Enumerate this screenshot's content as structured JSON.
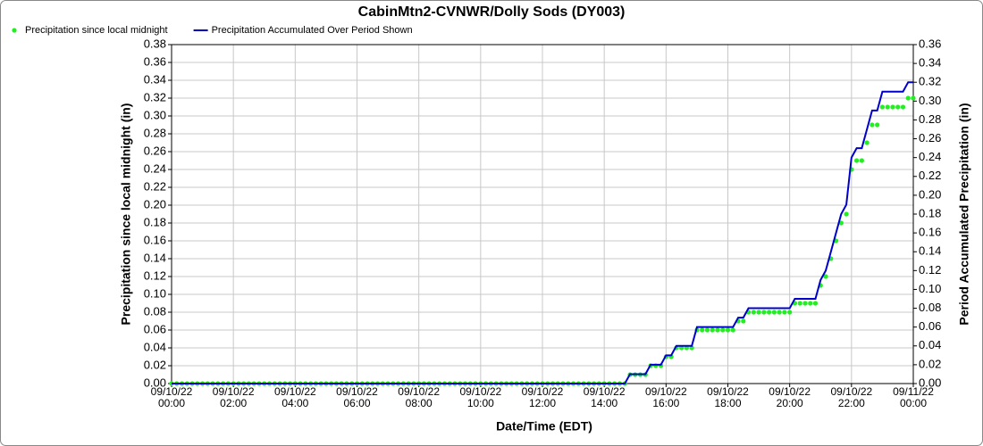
{
  "chart_data": {
    "type": "line",
    "title": "CabinMtn2-CVNWR/Dolly Sods (DY003)",
    "x_label": "Date/Time (EDT)",
    "y_label": "Precipitation since local midnight (in)",
    "y2_label": "Period Accumulated Precipitation (in)",
    "grid": true,
    "legend_position": "top-left",
    "xlim": [
      "09/10/22 00:00",
      "09/11/22 00:00"
    ],
    "xticks": [
      "09/10/22 00:00",
      "09/10/22 02:00",
      "09/10/22 04:00",
      "09/10/22 06:00",
      "09/10/22 08:00",
      "09/10/22 10:00",
      "09/10/22 12:00",
      "09/10/22 14:00",
      "09/10/22 16:00",
      "09/10/22 18:00",
      "09/10/22 20:00",
      "09/10/22 22:00",
      "09/11/22 00:00"
    ],
    "ylim": [
      0,
      0.38
    ],
    "yticks": [
      {
        "value": 0,
        "label": "0.00"
      },
      {
        "value": 0.02,
        "label": "0.02"
      },
      {
        "value": 0.04,
        "label": "0.04"
      },
      {
        "value": 0.06,
        "label": "0.06"
      },
      {
        "value": 0.08,
        "label": "0.08"
      },
      {
        "value": 0.1,
        "label": "0.10"
      },
      {
        "value": 0.12,
        "label": "0.12"
      },
      {
        "value": 0.14,
        "label": "0.14"
      },
      {
        "value": 0.16,
        "label": "0.16"
      },
      {
        "value": 0.18,
        "label": "0.18"
      },
      {
        "value": 0.2,
        "label": "0.20"
      },
      {
        "value": 0.22,
        "label": "0.22"
      },
      {
        "value": 0.24,
        "label": "0.24"
      },
      {
        "value": 0.26,
        "label": "0.26"
      },
      {
        "value": 0.28,
        "label": "0.28"
      },
      {
        "value": 0.3,
        "label": "0.30"
      },
      {
        "value": 0.32,
        "label": "0.32"
      },
      {
        "value": 0.34,
        "label": "0.34"
      },
      {
        "value": 0.36,
        "label": "0.36"
      },
      {
        "value": 0.38,
        "label": "0.38"
      }
    ],
    "y2lim": [
      0,
      0.36
    ],
    "y2ticks": [
      {
        "value": 0,
        "label": "0.00"
      },
      {
        "value": 0.02,
        "label": "0.02"
      },
      {
        "value": 0.04,
        "label": "0.04"
      },
      {
        "value": 0.06,
        "label": "0.06"
      },
      {
        "value": 0.08,
        "label": "0.08"
      },
      {
        "value": 0.1,
        "label": "0.10"
      },
      {
        "value": 0.12,
        "label": "0.12"
      },
      {
        "value": 0.14,
        "label": "0.14"
      },
      {
        "value": 0.16,
        "label": "0.16"
      },
      {
        "value": 0.18,
        "label": "0.18"
      },
      {
        "value": 0.2,
        "label": "0.20"
      },
      {
        "value": 0.22,
        "label": "0.22"
      },
      {
        "value": 0.24,
        "label": "0.24"
      },
      {
        "value": 0.26,
        "label": "0.26"
      },
      {
        "value": 0.28,
        "label": "0.28"
      },
      {
        "value": 0.3,
        "label": "0.30"
      },
      {
        "value": 0.32,
        "label": "0.32"
      },
      {
        "value": 0.34,
        "label": "0.34"
      },
      {
        "value": 0.36,
        "label": "0.36"
      }
    ],
    "x": [
      "09/10/22 00:00",
      "09/10/22 00:10",
      "09/10/22 00:20",
      "09/10/22 00:30",
      "09/10/22 00:40",
      "09/10/22 00:50",
      "09/10/22 01:00",
      "09/10/22 01:10",
      "09/10/22 01:20",
      "09/10/22 01:30",
      "09/10/22 01:40",
      "09/10/22 01:50",
      "09/10/22 02:00",
      "09/10/22 02:10",
      "09/10/22 02:20",
      "09/10/22 02:30",
      "09/10/22 02:40",
      "09/10/22 02:50",
      "09/10/22 03:00",
      "09/10/22 03:10",
      "09/10/22 03:20",
      "09/10/22 03:30",
      "09/10/22 03:40",
      "09/10/22 03:50",
      "09/10/22 04:00",
      "09/10/22 04:10",
      "09/10/22 04:20",
      "09/10/22 04:30",
      "09/10/22 04:40",
      "09/10/22 04:50",
      "09/10/22 05:00",
      "09/10/22 05:10",
      "09/10/22 05:20",
      "09/10/22 05:30",
      "09/10/22 05:40",
      "09/10/22 05:50",
      "09/10/22 06:00",
      "09/10/22 06:10",
      "09/10/22 06:20",
      "09/10/22 06:30",
      "09/10/22 06:40",
      "09/10/22 06:50",
      "09/10/22 07:00",
      "09/10/22 07:10",
      "09/10/22 07:20",
      "09/10/22 07:30",
      "09/10/22 07:40",
      "09/10/22 07:50",
      "09/10/22 08:00",
      "09/10/22 08:10",
      "09/10/22 08:20",
      "09/10/22 08:30",
      "09/10/22 08:40",
      "09/10/22 08:50",
      "09/10/22 09:00",
      "09/10/22 09:10",
      "09/10/22 09:20",
      "09/10/22 09:30",
      "09/10/22 09:40",
      "09/10/22 09:50",
      "09/10/22 10:00",
      "09/10/22 10:10",
      "09/10/22 10:20",
      "09/10/22 10:30",
      "09/10/22 10:40",
      "09/10/22 10:50",
      "09/10/22 11:00",
      "09/10/22 11:10",
      "09/10/22 11:20",
      "09/10/22 11:30",
      "09/10/22 11:40",
      "09/10/22 11:50",
      "09/10/22 12:00",
      "09/10/22 12:10",
      "09/10/22 12:20",
      "09/10/22 12:30",
      "09/10/22 12:40",
      "09/10/22 12:50",
      "09/10/22 13:00",
      "09/10/22 13:10",
      "09/10/22 13:20",
      "09/10/22 13:30",
      "09/10/22 13:40",
      "09/10/22 13:50",
      "09/10/22 14:00",
      "09/10/22 14:10",
      "09/10/22 14:20",
      "09/10/22 14:30",
      "09/10/22 14:40",
      "09/10/22 14:50",
      "09/10/22 15:00",
      "09/10/22 15:10",
      "09/10/22 15:20",
      "09/10/22 15:30",
      "09/10/22 15:40",
      "09/10/22 15:50",
      "09/10/22 16:00",
      "09/10/22 16:10",
      "09/10/22 16:20",
      "09/10/22 16:30",
      "09/10/22 16:40",
      "09/10/22 16:50",
      "09/10/22 17:00",
      "09/10/22 17:10",
      "09/10/22 17:20",
      "09/10/22 17:30",
      "09/10/22 17:40",
      "09/10/22 17:50",
      "09/10/22 18:00",
      "09/10/22 18:10",
      "09/10/22 18:20",
      "09/10/22 18:30",
      "09/10/22 18:40",
      "09/10/22 18:50",
      "09/10/22 19:00",
      "09/10/22 19:10",
      "09/10/22 19:20",
      "09/10/22 19:30",
      "09/10/22 19:40",
      "09/10/22 19:50",
      "09/10/22 20:00",
      "09/10/22 20:10",
      "09/10/22 20:20",
      "09/10/22 20:30",
      "09/10/22 20:40",
      "09/10/22 20:50",
      "09/10/22 21:00",
      "09/10/22 21:10",
      "09/10/22 21:20",
      "09/10/22 21:30",
      "09/10/22 21:40",
      "09/10/22 21:50",
      "09/10/22 22:00",
      "09/10/22 22:10",
      "09/10/22 22:20",
      "09/10/22 22:30",
      "09/10/22 22:40",
      "09/10/22 22:50",
      "09/10/22 23:00",
      "09/10/22 23:10",
      "09/10/22 23:20",
      "09/10/22 23:30",
      "09/10/22 23:40",
      "09/10/22 23:50",
      "09/11/22 00:00"
    ],
    "series": [
      {
        "name": "Precipitation since local midnight",
        "color": "#22ee22",
        "mode": "markers",
        "values": [
          0,
          0,
          0,
          0,
          0,
          0,
          0,
          0,
          0,
          0,
          0,
          0,
          0,
          0,
          0,
          0,
          0,
          0,
          0,
          0,
          0,
          0,
          0,
          0,
          0,
          0,
          0,
          0,
          0,
          0,
          0,
          0,
          0,
          0,
          0,
          0,
          0,
          0,
          0,
          0,
          0,
          0,
          0,
          0,
          0,
          0,
          0,
          0,
          0,
          0,
          0,
          0,
          0,
          0,
          0,
          0,
          0,
          0,
          0,
          0,
          0,
          0,
          0,
          0,
          0,
          0,
          0,
          0,
          0,
          0,
          0,
          0,
          0,
          0,
          0,
          0,
          0,
          0,
          0,
          0,
          0,
          0,
          0,
          0,
          0,
          0,
          0,
          0,
          0,
          0.01,
          0.01,
          0.01,
          0.01,
          0.02,
          0.02,
          0.02,
          0.03,
          0.03,
          0.04,
          0.04,
          0.04,
          0.04,
          0.06,
          0.06,
          0.06,
          0.06,
          0.06,
          0.06,
          0.06,
          0.06,
          0.07,
          0.07,
          0.08,
          0.08,
          0.08,
          0.08,
          0.08,
          0.08,
          0.08,
          0.08,
          0.08,
          0.09,
          0.09,
          0.09,
          0.09,
          0.09,
          0.11,
          0.12,
          0.14,
          0.16,
          0.18,
          0.19,
          0.24,
          0.25,
          0.25,
          0.27,
          0.29,
          0.29,
          0.31,
          0.31,
          0.31,
          0.31,
          0.31,
          0.32,
          0.32
        ]
      },
      {
        "name": "Precipitation Accumulated Over Period Shown",
        "color": "#0000cc",
        "mode": "line",
        "axis": "y2",
        "values": [
          0,
          0,
          0,
          0,
          0,
          0,
          0,
          0,
          0,
          0,
          0,
          0,
          0,
          0,
          0,
          0,
          0,
          0,
          0,
          0,
          0,
          0,
          0,
          0,
          0,
          0,
          0,
          0,
          0,
          0,
          0,
          0,
          0,
          0,
          0,
          0,
          0,
          0,
          0,
          0,
          0,
          0,
          0,
          0,
          0,
          0,
          0,
          0,
          0,
          0,
          0,
          0,
          0,
          0,
          0,
          0,
          0,
          0,
          0,
          0,
          0,
          0,
          0,
          0,
          0,
          0,
          0,
          0,
          0,
          0,
          0,
          0,
          0,
          0,
          0,
          0,
          0,
          0,
          0,
          0,
          0,
          0,
          0,
          0,
          0,
          0,
          0,
          0,
          0,
          0.01,
          0.01,
          0.01,
          0.01,
          0.02,
          0.02,
          0.02,
          0.03,
          0.03,
          0.04,
          0.04,
          0.04,
          0.04,
          0.06,
          0.06,
          0.06,
          0.06,
          0.06,
          0.06,
          0.06,
          0.06,
          0.07,
          0.07,
          0.08,
          0.08,
          0.08,
          0.08,
          0.08,
          0.08,
          0.08,
          0.08,
          0.08,
          0.09,
          0.09,
          0.09,
          0.09,
          0.09,
          0.11,
          0.12,
          0.14,
          0.16,
          0.18,
          0.19,
          0.24,
          0.25,
          0.25,
          0.27,
          0.29,
          0.29,
          0.31,
          0.31,
          0.31,
          0.31,
          0.31,
          0.32,
          0.32
        ]
      }
    ]
  }
}
